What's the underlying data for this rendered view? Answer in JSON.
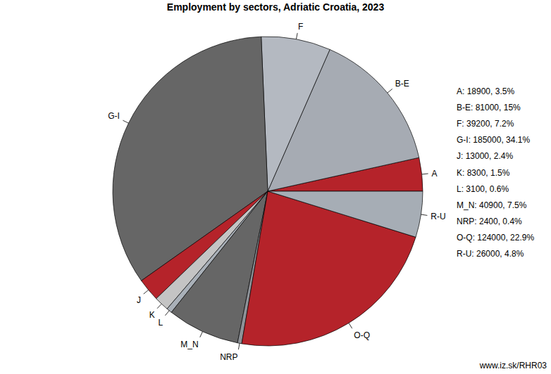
{
  "chart_data": {
    "type": "pie",
    "title": "Employment by sectors, Adriatic Croatia, 2023",
    "categories": [
      "A",
      "B-E",
      "F",
      "G-I",
      "J",
      "K",
      "L",
      "M_N",
      "NRP",
      "O-Q",
      "R-U"
    ],
    "values": [
      18900,
      81000,
      39200,
      185000,
      13000,
      8300,
      3100,
      40900,
      2400,
      124000,
      26000
    ],
    "value_labels": [
      "A: 18900, 3.5%",
      "B-E: 81000, 15%",
      "F: 39200, 7.2%",
      "G-I: 185000, 34.1%",
      "J: 13000, 2.4%",
      "K: 8300, 1.5%",
      "L: 3100, 0.6%",
      "M_N: 40900, 7.5%",
      "NRP: 2400, 0.4%",
      "O-Q: 124000, 22.9%",
      "R-U: 26000, 4.8%"
    ],
    "colors": [
      "#b5232a",
      "#a6abb3",
      "#b4b9c1",
      "#666666",
      "#b5232a",
      "#c4c4c4",
      "#a9b0b8",
      "#666666",
      "#8e9298",
      "#b5232a",
      "#a6adb5"
    ],
    "source": "www.iz.sk/RHR03"
  }
}
